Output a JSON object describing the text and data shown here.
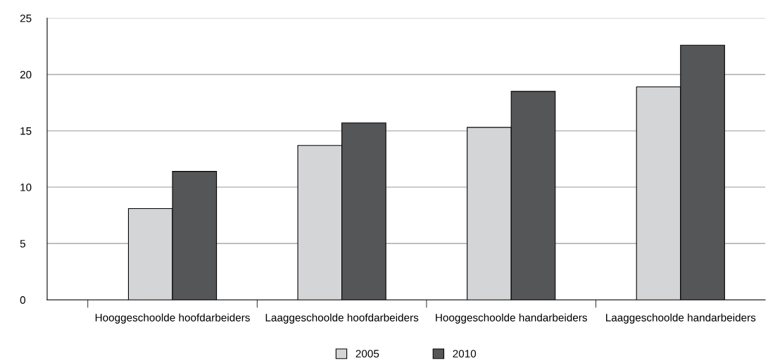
{
  "chart_data": {
    "type": "bar",
    "categories": [
      "Hooggeschoolde hoofdarbeiders",
      "Laaggeschoolde hoofdarbeiders",
      "Hooggeschoolde handarbeiders",
      "Laaggeschoolde handarbeiders"
    ],
    "series": [
      {
        "name": "2005",
        "color": "#d4d5d7",
        "values": [
          8.1,
          13.7,
          15.3,
          18.9
        ]
      },
      {
        "name": "2010",
        "color": "#555658",
        "values": [
          11.4,
          15.7,
          18.5,
          22.6
        ]
      }
    ],
    "ylim": [
      0,
      25
    ],
    "yticks": [
      0,
      5,
      10,
      15,
      20,
      25
    ],
    "grid": "y",
    "legend": "bottom"
  }
}
